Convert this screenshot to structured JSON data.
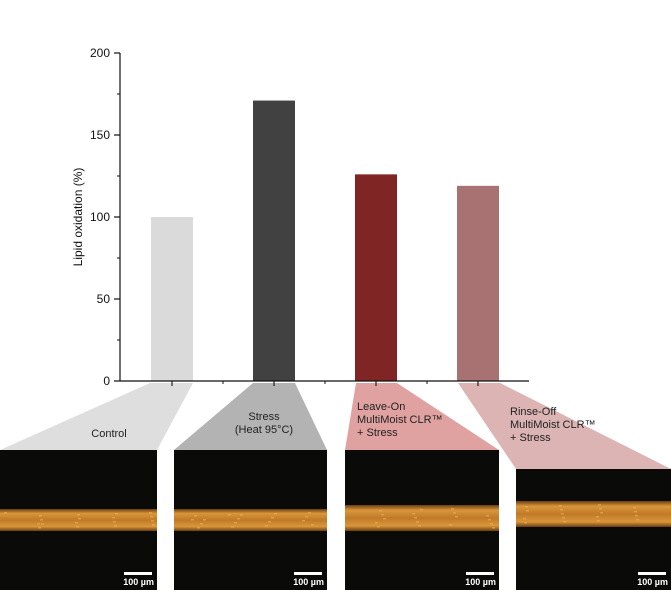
{
  "chart_data": {
    "type": "bar",
    "ylabel": "Lipid oxidation (%)",
    "ylim": [
      0,
      200
    ],
    "yticks": [
      "0",
      "50",
      "100",
      "150",
      "200"
    ],
    "categories": [
      "Control",
      "Stress (Heat 95°C)",
      "Leave-On MultiMoist CLR™ + Stress",
      "Rinse-Off MultiMoist CLR™ + Stress"
    ],
    "values": [
      100,
      171,
      126,
      119
    ],
    "colors": [
      "#dadada",
      "#414141",
      "#7f2624",
      "#a87273"
    ],
    "grid": false,
    "legend": "none"
  },
  "panels": [
    {
      "label_lines": [
        "Control"
      ],
      "scale_bar": "100 µm"
    },
    {
      "label_lines": [
        "Stress",
        "(Heat 95°C)"
      ],
      "scale_bar": "100 µm"
    },
    {
      "label_lines": [
        "Leave-On",
        "MultiMoist CLR™",
        "+ Stress"
      ],
      "scale_bar": "100 µm"
    },
    {
      "label_lines": [
        "Rinse-Off",
        "MultiMoist CLR™",
        "+ Stress"
      ],
      "scale_bar": "100 µm"
    }
  ],
  "colors": {
    "funnel_fills": [
      "#dedede",
      "#b3b3b3",
      "#e0a2a1",
      "#dcb4b4"
    ],
    "image_background": "#0a0a08",
    "hair_fiber": "#c9882e"
  }
}
